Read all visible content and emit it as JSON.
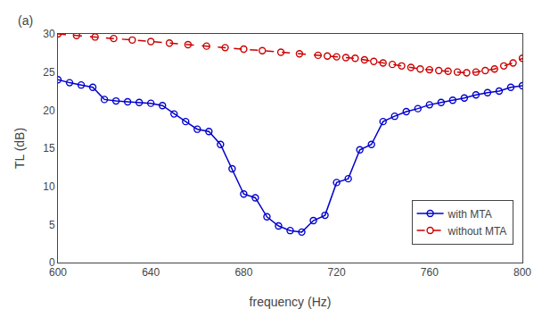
{
  "chart_data": {
    "type": "line",
    "xlabel": "frequency (Hz)",
    "ylabel": "TL (dB)",
    "xlim": [
      600,
      800
    ],
    "ylim": [
      0,
      30
    ],
    "xticks": [
      600,
      640,
      680,
      720,
      760,
      800
    ],
    "yticks": [
      0,
      5,
      10,
      15,
      20,
      25,
      30
    ],
    "grid": false,
    "legend": "lower right",
    "annotations": [
      "(a)"
    ],
    "series": [
      {
        "name": "with MTA",
        "color": "#0000cd",
        "line_style": "solid",
        "marker": "open circle",
        "x": [
          600,
          605,
          610,
          615,
          620,
          625,
          630,
          635,
          640,
          645,
          650,
          655,
          660,
          665,
          670,
          675,
          680,
          685,
          690,
          695,
          700,
          705,
          710,
          715,
          720,
          725,
          730,
          735,
          740,
          745,
          750,
          755,
          760,
          765,
          770,
          775,
          780,
          785,
          790,
          795,
          800
        ],
        "values": [
          24.0,
          23.6,
          23.3,
          23.0,
          21.4,
          21.2,
          21.1,
          21.0,
          20.9,
          20.6,
          19.5,
          18.5,
          17.5,
          17.2,
          15.5,
          12.3,
          9.0,
          8.5,
          6.0,
          4.8,
          4.2,
          4.0,
          5.5,
          6.2,
          10.5,
          11.0,
          14.8,
          15.5,
          18.5,
          19.2,
          19.8,
          20.2,
          20.7,
          21.0,
          21.3,
          21.6,
          22.0,
          22.3,
          22.5,
          23.0,
          23.2
        ]
      },
      {
        "name": "without MTA",
        "color": "#cc0000",
        "line_style": "dashed",
        "marker": "open circle",
        "x": [
          600,
          608,
          616,
          624,
          632,
          640,
          648,
          656,
          664,
          672,
          680,
          688,
          696,
          704,
          712,
          716,
          720,
          724,
          728,
          732,
          736,
          740,
          744,
          748,
          752,
          756,
          760,
          764,
          768,
          772,
          776,
          780,
          784,
          788,
          792,
          796,
          800
        ],
        "values": [
          30.0,
          29.8,
          29.6,
          29.4,
          29.2,
          29.0,
          28.8,
          28.6,
          28.4,
          28.2,
          28.0,
          27.8,
          27.6,
          27.4,
          27.2,
          27.1,
          27.0,
          26.9,
          26.8,
          26.6,
          26.4,
          26.2,
          26.0,
          25.8,
          25.6,
          25.4,
          25.3,
          25.2,
          25.1,
          25.0,
          24.9,
          25.0,
          25.2,
          25.4,
          25.8,
          26.2,
          26.8
        ]
      }
    ]
  }
}
